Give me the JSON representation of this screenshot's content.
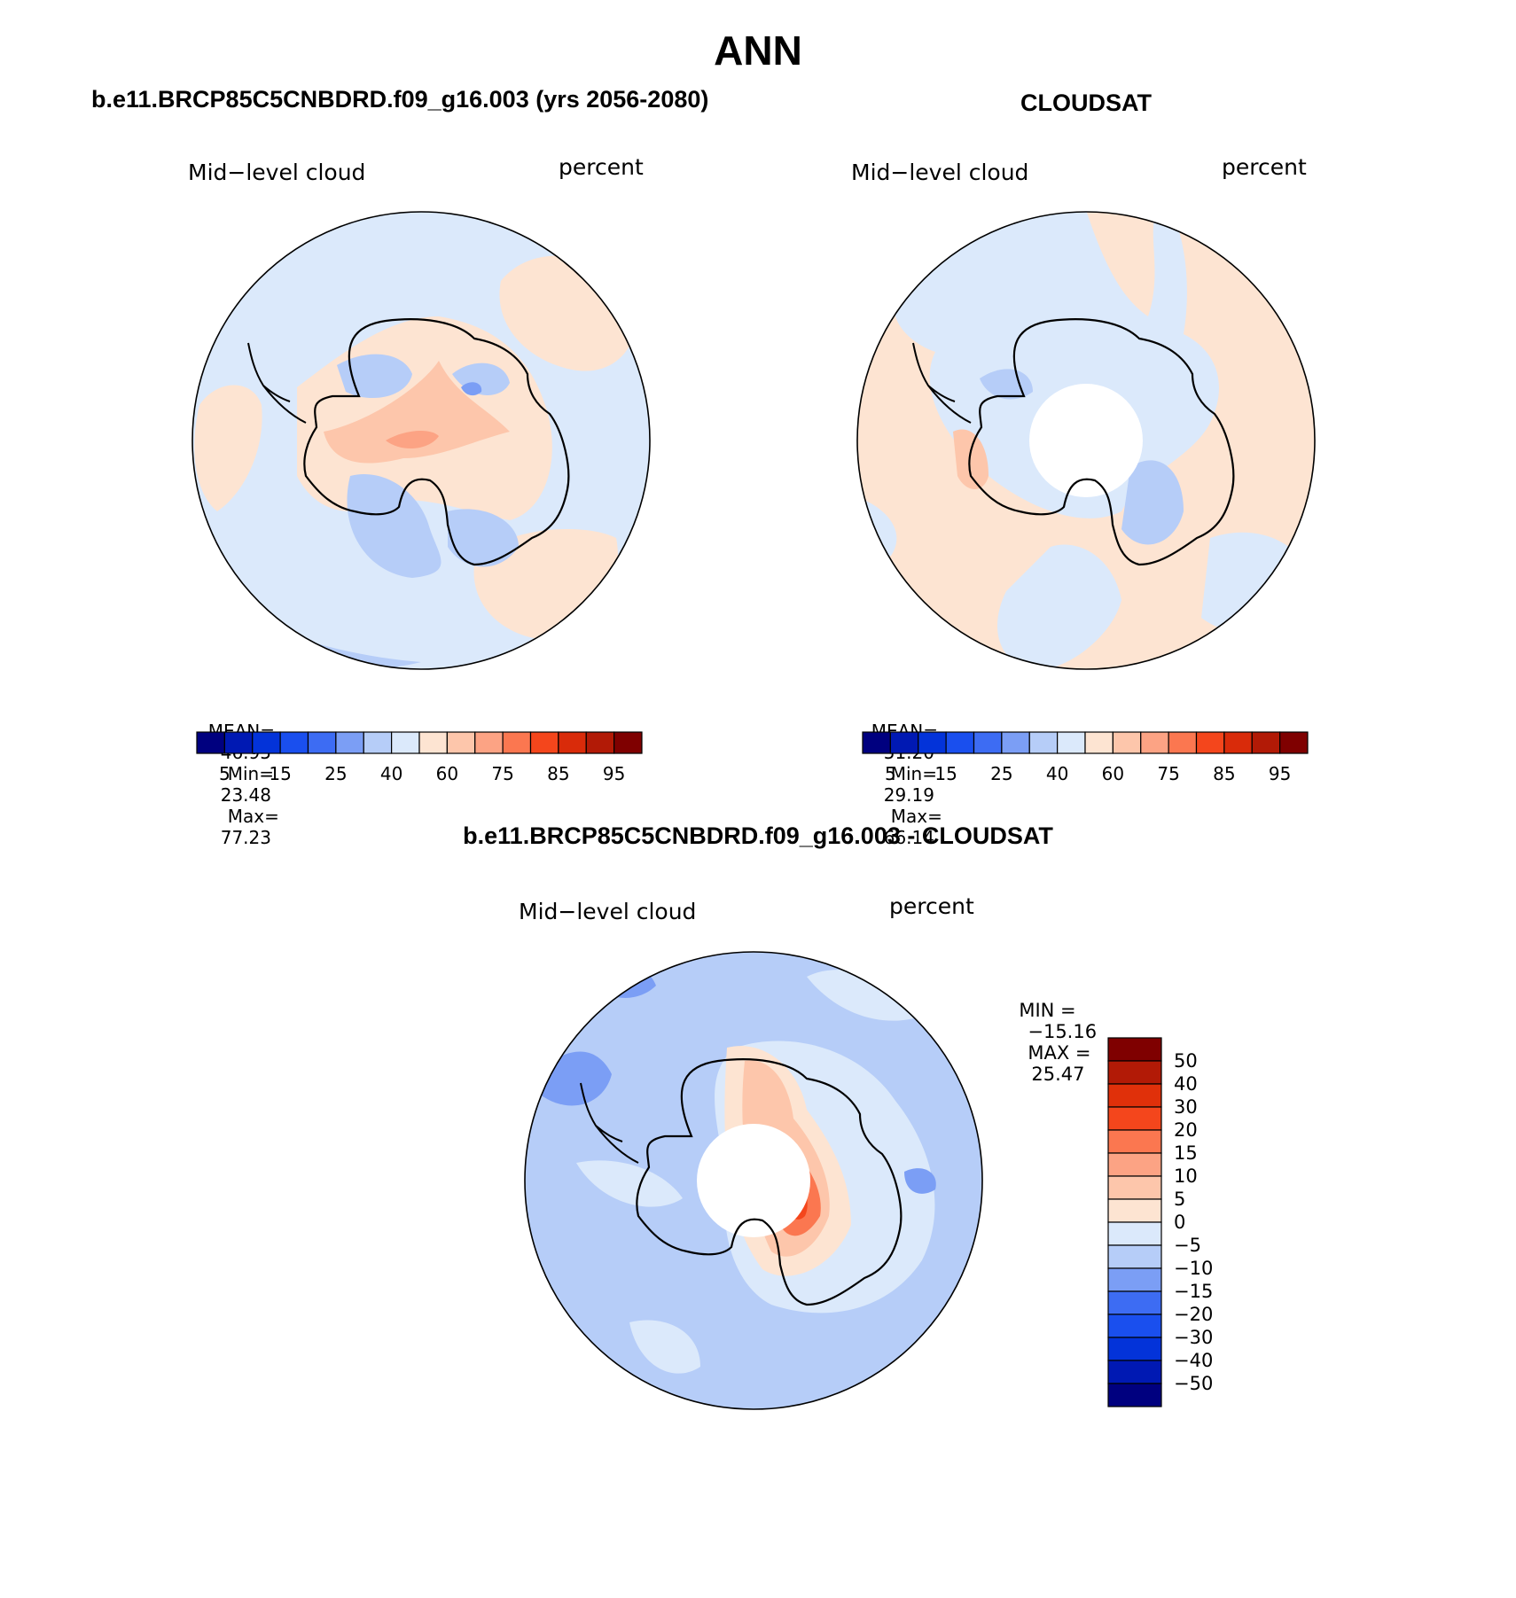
{
  "page": {
    "title": "ANN",
    "colors": {
      "ocean_low": "#d6e8fb",
      "pos_light": "#fde4d2",
      "neg_light": "#b9d2fa"
    }
  },
  "panels": [
    {
      "id": "model",
      "heading": "b.e11.BRCP85C5CNBDRD.f09_g16.003 (yrs 2056-2080)",
      "variable": "Mid−level cloud",
      "units": "percent",
      "stats": {
        "mean_label": "MEAN=",
        "mean": "46.95",
        "min_label": "Min=",
        "min": "23.48",
        "max_label": "Max=",
        "max": "77.23"
      },
      "colorbar": {
        "labels": [
          "5",
          "15",
          "25",
          "40",
          "60",
          "75",
          "85",
          "95"
        ],
        "colors": [
          "#00007f",
          "#0019b3",
          "#0333d9",
          "#1a4fee",
          "#3d6cf3",
          "#7b9ef5",
          "#b6cdf8",
          "#dbe9fb",
          "#fde4d2",
          "#fdc6ab",
          "#fca384",
          "#fb7750",
          "#f4461c",
          "#d92b0a",
          "#b21a06",
          "#7f0000"
        ]
      }
    },
    {
      "id": "obs",
      "heading": "CLOUDSAT",
      "variable": "Mid−level cloud",
      "units": "percent",
      "stats": {
        "mean_label": "MEAN=",
        "mean": "51.20",
        "min_label": "Min=",
        "min": "29.19",
        "max_label": "Max=",
        "max": "66.14"
      },
      "colorbar": {
        "labels": [
          "5",
          "15",
          "25",
          "40",
          "60",
          "75",
          "85",
          "95"
        ],
        "colors": [
          "#00007f",
          "#0019b3",
          "#0333d9",
          "#1a4fee",
          "#3d6cf3",
          "#7b9ef5",
          "#b6cdf8",
          "#dbe9fb",
          "#fde4d2",
          "#fdc6ab",
          "#fca384",
          "#fb7750",
          "#f4461c",
          "#d92b0a",
          "#b21a06",
          "#7f0000"
        ]
      }
    },
    {
      "id": "diff",
      "heading": "b.e11.BRCP85C5CNBDRD.f09_g16.003 - CLOUDSAT",
      "variable": "Mid−level cloud",
      "units": "percent",
      "stats": {
        "min_label": "MIN =",
        "min": "−15.16",
        "max_label": "MAX =",
        "max": "25.47"
      },
      "colorbar": {
        "labels": [
          "50",
          "40",
          "30",
          "20",
          "15",
          "10",
          "5",
          "0",
          "−5",
          "−10",
          "−15",
          "−20",
          "−30",
          "−40",
          "−50"
        ],
        "colors": [
          "#7f0000",
          "#b21a06",
          "#e0300a",
          "#f4461c",
          "#fb7750",
          "#fca384",
          "#fdc6ab",
          "#fde4d2",
          "#dbe9fb",
          "#b6cdf8",
          "#7b9ef5",
          "#3d6cf3",
          "#1a4fee",
          "#0333d9",
          "#0019b3",
          "#00007f"
        ]
      }
    }
  ]
}
